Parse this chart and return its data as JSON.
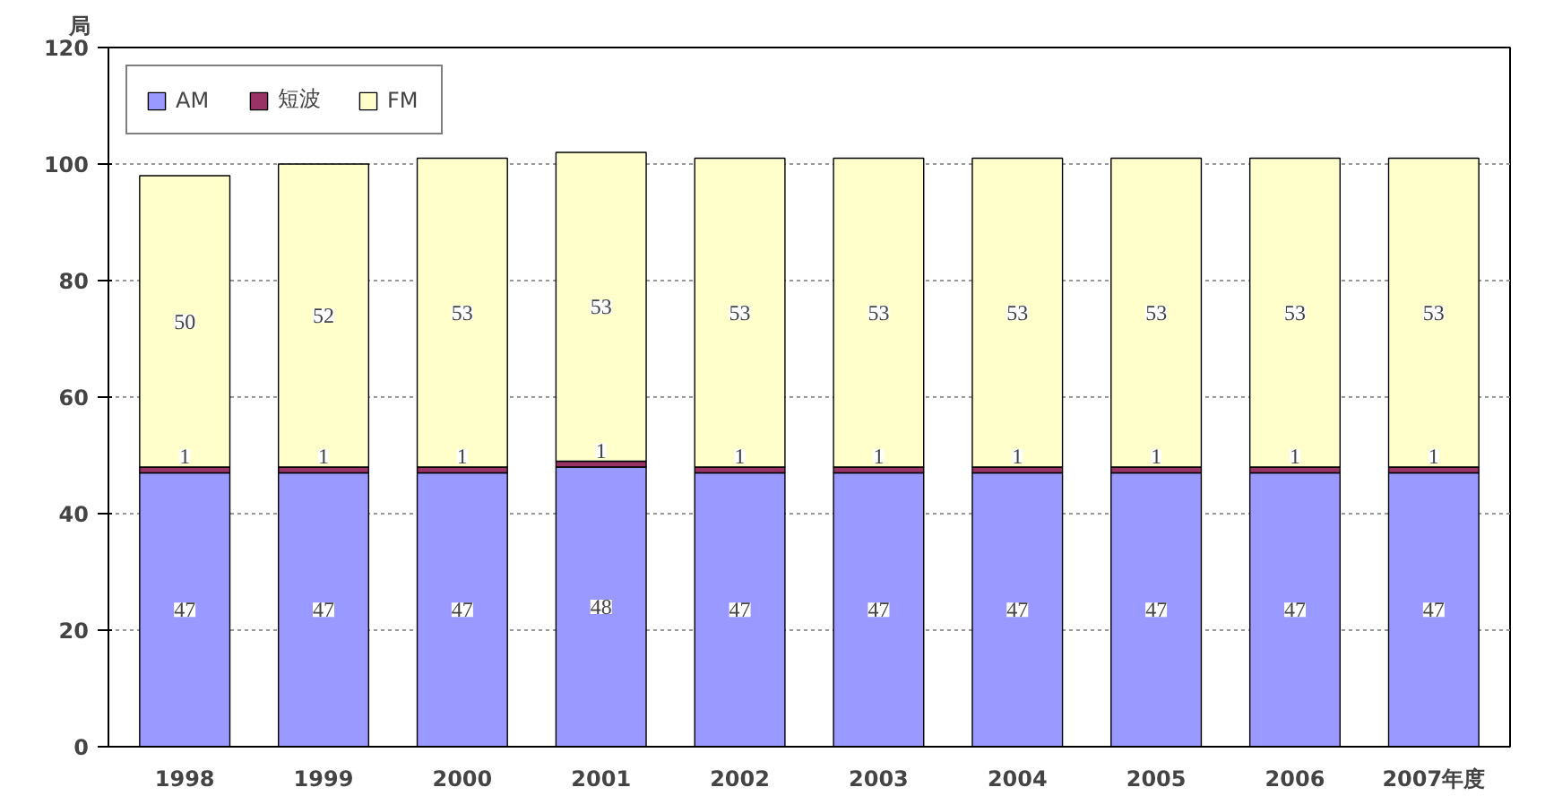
{
  "chart_data": {
    "type": "bar",
    "stacked": true,
    "ylabel": "局",
    "categories": [
      "1998",
      "1999",
      "2000",
      "2001",
      "2002",
      "2003",
      "2004",
      "2005",
      "2006",
      "2007年度"
    ],
    "series": [
      {
        "name": "AM",
        "color": "#9999ff",
        "values": [
          47,
          47,
          47,
          48,
          47,
          47,
          47,
          47,
          47,
          47
        ]
      },
      {
        "name": "短波",
        "color": "#993366",
        "values": [
          1,
          1,
          1,
          1,
          1,
          1,
          1,
          1,
          1,
          1
        ]
      },
      {
        "name": "FM",
        "color": "#ffffcc",
        "values": [
          50,
          52,
          53,
          53,
          53,
          53,
          53,
          53,
          53,
          53
        ]
      }
    ],
    "ylim": [
      0,
      120
    ],
    "yticks": [
      0,
      20,
      40,
      60,
      80,
      100,
      120
    ],
    "grid": "y",
    "legend": "top left",
    "data_labels": true
  }
}
